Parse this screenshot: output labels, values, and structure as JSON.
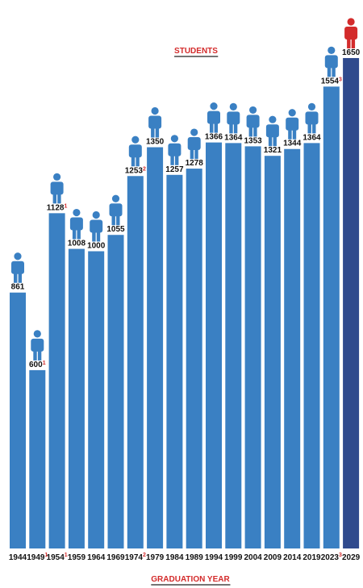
{
  "chart_data": {
    "type": "bar",
    "title": "STUDENTS",
    "x_label": "GRADUATION YEAR",
    "categories": [
      "1944",
      "1949",
      "1954",
      "1959",
      "1964",
      "1969",
      "1974",
      "1979",
      "1984",
      "1989",
      "1994",
      "1999",
      "2004",
      "2009",
      "2014",
      "2019",
      "2023",
      "2029"
    ],
    "values": [
      861,
      600,
      1128,
      1008,
      1000,
      1055,
      1253,
      1350,
      1257,
      1278,
      1366,
      1364,
      1353,
      1321,
      1344,
      1364,
      1554,
      1650
    ],
    "notes": [
      null,
      "1",
      "1",
      null,
      null,
      null,
      "2",
      null,
      null,
      null,
      null,
      null,
      null,
      null,
      null,
      null,
      "3",
      null
    ],
    "bar_colors": [
      "#3a80c3",
      "#3a80c3",
      "#3a80c3",
      "#3a80c3",
      "#3a80c3",
      "#3a80c3",
      "#3a80c3",
      "#3a80c3",
      "#3a80c3",
      "#3a80c3",
      "#3a80c3",
      "#3a80c3",
      "#3a80c3",
      "#3a80c3",
      "#3a80c3",
      "#3a80c3",
      "#3a80c3",
      "#2f4a8d"
    ],
    "icon_colors": [
      "#3a80c3",
      "#3a80c3",
      "#3a80c3",
      "#3a80c3",
      "#3a80c3",
      "#3a80c3",
      "#3a80c3",
      "#3a80c3",
      "#3a80c3",
      "#3a80c3",
      "#3a80c3",
      "#3a80c3",
      "#3a80c3",
      "#3a80c3",
      "#3a80c3",
      "#3a80c3",
      "#3a80c3",
      "#d32b2b"
    ],
    "accent_color": "#d32b2b"
  }
}
